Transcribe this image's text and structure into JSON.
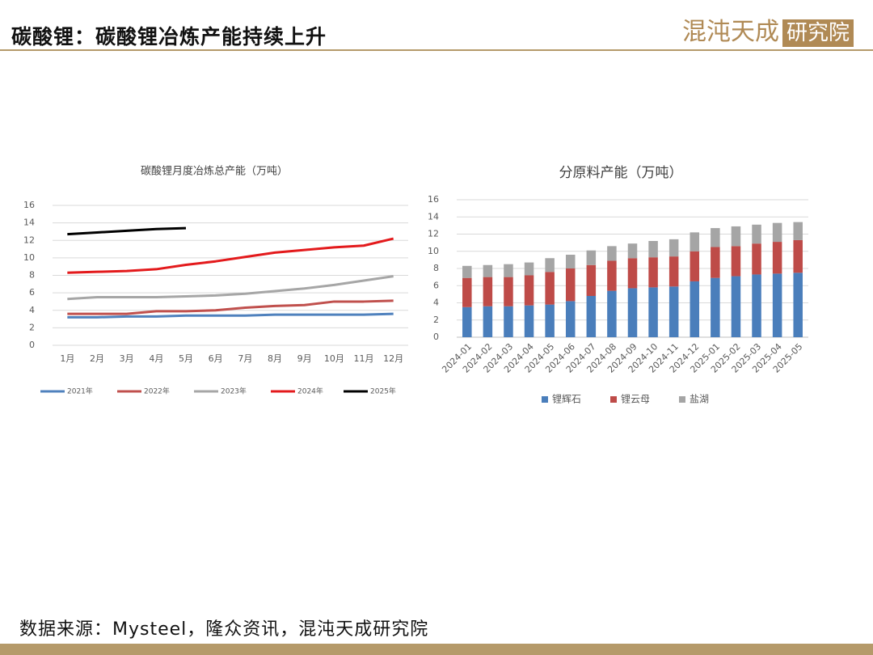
{
  "header": {
    "title": "碳酸锂：碳酸锂冶炼产能持续上升",
    "logo": "混沌天成",
    "logo_box": "研究院"
  },
  "footer": {
    "source": "数据来源：Mysteel，隆众资讯，混沌天成研究院"
  },
  "chart_data": [
    {
      "type": "line",
      "title": "碳酸锂月度冶炼总产能（万吨）",
      "categories": [
        "1月",
        "2月",
        "3月",
        "4月",
        "5月",
        "6月",
        "7月",
        "8月",
        "9月",
        "10月",
        "11月",
        "12月"
      ],
      "series": [
        {
          "name": "2021年",
          "color": "#4f81bd",
          "values": [
            3.2,
            3.2,
            3.3,
            3.3,
            3.4,
            3.4,
            3.4,
            3.5,
            3.5,
            3.5,
            3.5,
            3.6
          ]
        },
        {
          "name": "2022年",
          "color": "#c0504d",
          "values": [
            3.6,
            3.6,
            3.6,
            3.9,
            3.9,
            4.0,
            4.3,
            4.5,
            4.6,
            5.0,
            5.0,
            5.1
          ]
        },
        {
          "name": "2023年",
          "color": "#a6a6a6",
          "values": [
            5.3,
            5.5,
            5.5,
            5.5,
            5.6,
            5.7,
            5.9,
            6.2,
            6.5,
            6.9,
            7.4,
            7.9
          ]
        },
        {
          "name": "2024年",
          "color": "#e31a1c",
          "values": [
            8.3,
            8.4,
            8.5,
            8.7,
            9.2,
            9.6,
            10.1,
            10.6,
            10.9,
            11.2,
            11.4,
            12.2
          ]
        },
        {
          "name": "2025年",
          "color": "#000000",
          "values": [
            12.7,
            12.9,
            13.1,
            13.3,
            13.4,
            null,
            null,
            null,
            null,
            null,
            null,
            null
          ]
        }
      ],
      "ylim": [
        0,
        16
      ],
      "yticks": [
        0,
        2,
        4,
        6,
        8,
        10,
        12,
        14,
        16
      ],
      "grid": true,
      "legend": "bottom"
    },
    {
      "type": "bar",
      "stacked": true,
      "title": "分原料产能（万吨）",
      "categories": [
        "2024-01",
        "2024-02",
        "2024-03",
        "2024-04",
        "2024-05",
        "2024-06",
        "2024-07",
        "2024-08",
        "2024-09",
        "2024-10",
        "2024-11",
        "2024-12",
        "2025-01",
        "2025-02",
        "2025-03",
        "2025-04",
        "2025-05"
      ],
      "series": [
        {
          "name": "锂辉石",
          "color": "#4a7ebb",
          "values": [
            3.5,
            3.6,
            3.6,
            3.7,
            3.8,
            4.2,
            4.8,
            5.4,
            5.7,
            5.8,
            5.9,
            6.5,
            6.9,
            7.1,
            7.3,
            7.4,
            7.5
          ]
        },
        {
          "name": "锂云母",
          "color": "#be4b48",
          "values": [
            3.4,
            3.4,
            3.4,
            3.5,
            3.8,
            3.8,
            3.6,
            3.5,
            3.5,
            3.5,
            3.5,
            3.5,
            3.6,
            3.5,
            3.6,
            3.7,
            3.8
          ]
        },
        {
          "name": "盐湖",
          "color": "#a5a5a5",
          "values": [
            1.4,
            1.4,
            1.5,
            1.5,
            1.6,
            1.6,
            1.7,
            1.7,
            1.7,
            1.9,
            2.0,
            2.2,
            2.2,
            2.3,
            2.2,
            2.2,
            2.1
          ]
        }
      ],
      "ylim": [
        0,
        16
      ],
      "yticks": [
        0,
        2,
        4,
        6,
        8,
        10,
        12,
        14,
        16
      ],
      "grid": true,
      "legend": "bottom"
    }
  ]
}
